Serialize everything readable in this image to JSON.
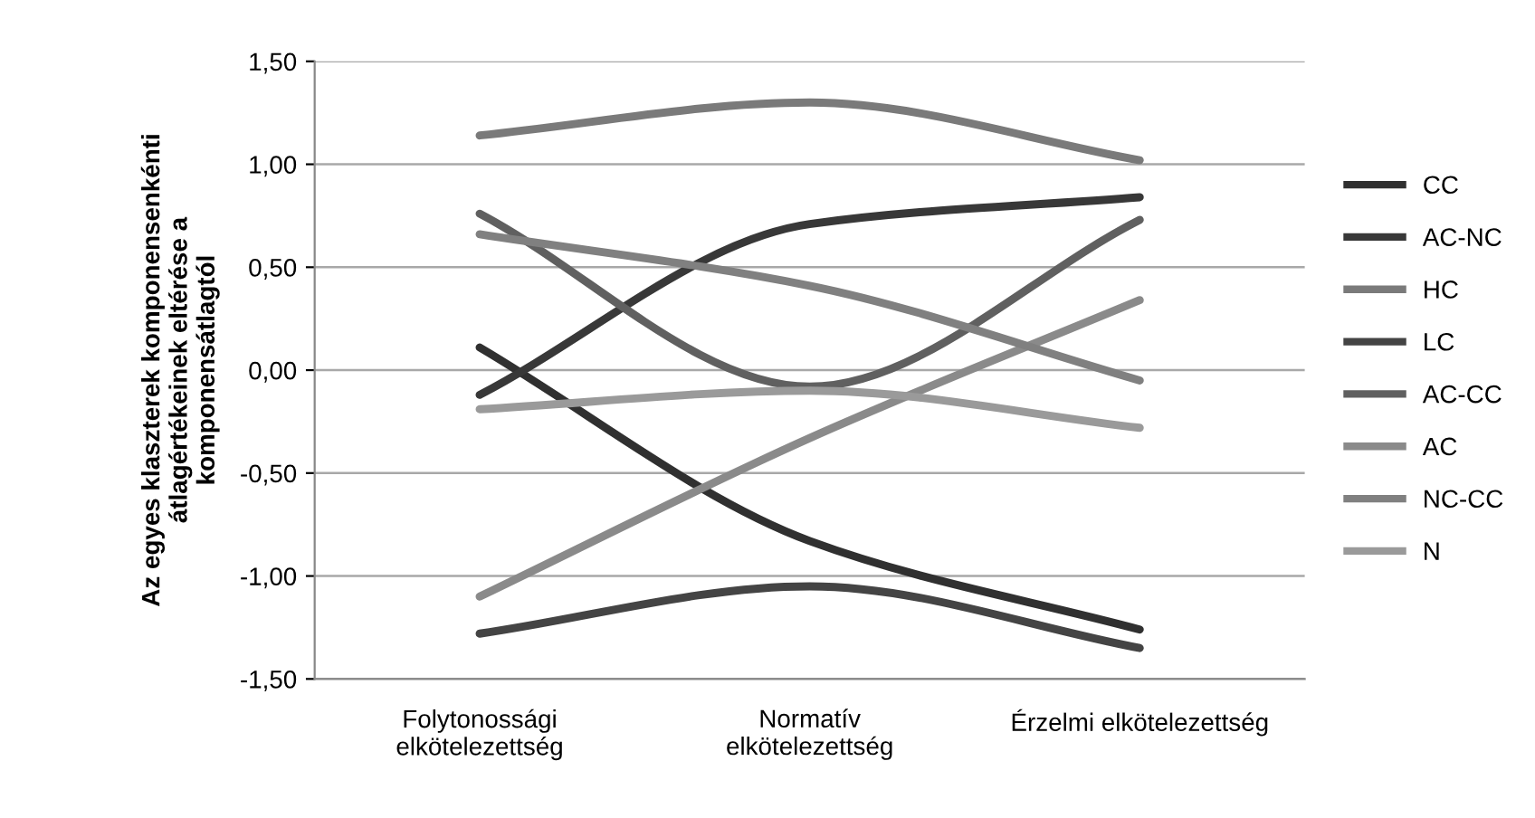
{
  "chart_data": {
    "type": "line",
    "ylabel": "Az egyes klaszterek komponensenkénti\nátlagértékeinek eltérése a\nkomponensátlagtól",
    "categories": [
      "Folytonossági\nelkötelezettség",
      "Normatív\nelkötelezettség",
      "Érzelmi elkötelezettség"
    ],
    "series": [
      {
        "name": "CC",
        "color": "#303030",
        "values": [
          0.11,
          -0.83,
          -1.26
        ]
      },
      {
        "name": "AC-NC",
        "color": "#383838",
        "values": [
          -0.12,
          0.71,
          0.84
        ]
      },
      {
        "name": "HC",
        "color": "#7a7a7a",
        "values": [
          1.14,
          1.3,
          1.02
        ]
      },
      {
        "name": "LC",
        "color": "#444444",
        "values": [
          -1.28,
          -1.05,
          -1.35
        ]
      },
      {
        "name": "AC-CC",
        "color": "#606060",
        "values": [
          0.76,
          -0.08,
          0.73
        ]
      },
      {
        "name": "AC",
        "color": "#8a8a8a",
        "values": [
          -1.1,
          -0.33,
          0.34
        ]
      },
      {
        "name": "NC-CC",
        "color": "#808080",
        "values": [
          0.66,
          0.41,
          -0.05
        ]
      },
      {
        "name": "N",
        "color": "#9a9a9a",
        "values": [
          -0.19,
          -0.1,
          -0.28
        ]
      }
    ],
    "ylim": [
      -1.5,
      1.5
    ],
    "yticks": [
      {
        "value": -1.5,
        "label": "-1,50"
      },
      {
        "value": -1.0,
        "label": "-1,00"
      },
      {
        "value": -0.5,
        "label": "-0,50"
      },
      {
        "value": 0,
        "label": "0,00"
      },
      {
        "value": 0.5,
        "label": "0,50"
      },
      {
        "value": 1.0,
        "label": "1,00"
      },
      {
        "value": 1.5,
        "label": "1,50"
      }
    ],
    "grid": "y",
    "legend": "right",
    "line_style": "solid",
    "marker": "none"
  }
}
